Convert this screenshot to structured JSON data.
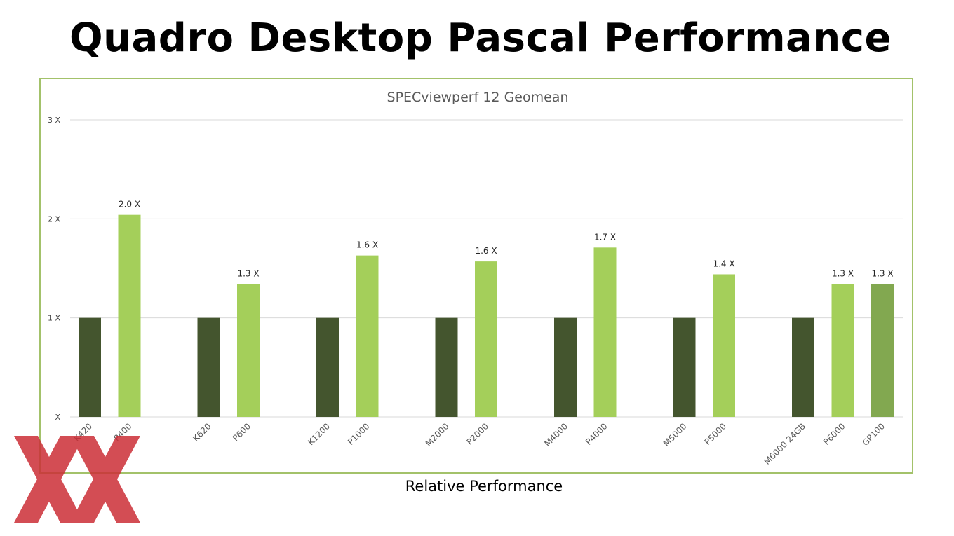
{
  "slide": {
    "title": "Quadro Desktop Pascal Performance",
    "footer_label": "Relative Performance"
  },
  "colors": {
    "previous_gen": "#44552e",
    "pascal": "#a4cf5a",
    "gp100": "#82a850",
    "frame": "#a3c26a",
    "watermark": "#cc2f37"
  },
  "chart_data": {
    "type": "bar",
    "title": "SPECviewperf 12 Geomean",
    "ylim": [
      0,
      3
    ],
    "yticks": [
      {
        "value": 0,
        "label": "X"
      },
      {
        "value": 1,
        "label": "1 X"
      },
      {
        "value": 2,
        "label": "2 X"
      },
      {
        "value": 3,
        "label": "3 X"
      }
    ],
    "grid": true,
    "groups": [
      {
        "bars": [
          {
            "label": "K420",
            "value": 1.0,
            "kind": "previous_gen"
          },
          {
            "label": "P400",
            "value": 2.04,
            "kind": "pascal",
            "data_label": "2.0 X"
          }
        ]
      },
      {
        "bars": [
          {
            "label": "K620",
            "value": 1.0,
            "kind": "previous_gen"
          },
          {
            "label": "P600",
            "value": 1.34,
            "kind": "pascal",
            "data_label": "1.3 X"
          }
        ]
      },
      {
        "bars": [
          {
            "label": "K1200",
            "value": 1.0,
            "kind": "previous_gen"
          },
          {
            "label": "P1000",
            "value": 1.63,
            "kind": "pascal",
            "data_label": "1.6 X"
          }
        ]
      },
      {
        "bars": [
          {
            "label": "M2000",
            "value": 1.0,
            "kind": "previous_gen"
          },
          {
            "label": "P2000",
            "value": 1.57,
            "kind": "pascal",
            "data_label": "1.6 X"
          }
        ]
      },
      {
        "bars": [
          {
            "label": "M4000",
            "value": 1.0,
            "kind": "previous_gen"
          },
          {
            "label": "P4000",
            "value": 1.71,
            "kind": "pascal",
            "data_label": "1.7 X"
          }
        ]
      },
      {
        "bars": [
          {
            "label": "M5000",
            "value": 1.0,
            "kind": "previous_gen"
          },
          {
            "label": "P5000",
            "value": 1.44,
            "kind": "pascal",
            "data_label": "1.4 X"
          }
        ]
      },
      {
        "bars": [
          {
            "label": "M6000 24GB",
            "value": 1.0,
            "kind": "previous_gen"
          },
          {
            "label": "P6000",
            "value": 1.34,
            "kind": "pascal",
            "data_label": "1.3 X"
          },
          {
            "label": "GP100",
            "value": 1.34,
            "kind": "gp100",
            "data_label": "1.3 X"
          }
        ]
      }
    ]
  }
}
